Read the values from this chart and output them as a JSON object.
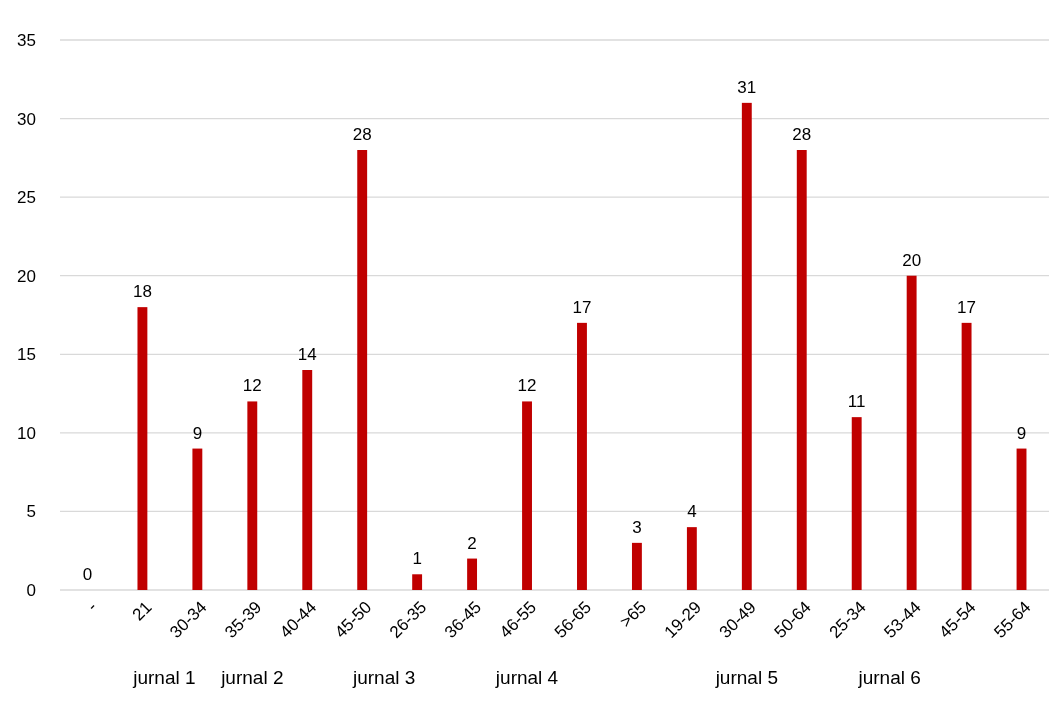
{
  "chart_data": {
    "type": "bar",
    "categories": [
      "-",
      "21",
      "30-34",
      "35-39",
      "40-44",
      "45-50",
      "26-35",
      "36-45",
      "46-55",
      "56-65",
      ">65",
      "19-29",
      "30-49",
      "50-64",
      "25-34",
      "53-44",
      "45-54",
      "55-64"
    ],
    "values": [
      0,
      18,
      9,
      12,
      14,
      28,
      1,
      2,
      12,
      17,
      3,
      4,
      31,
      28,
      11,
      20,
      17,
      9
    ],
    "color": "#c00000",
    "ylim": [
      0,
      35
    ],
    "yticks": [
      0,
      5,
      10,
      15,
      20,
      25,
      30,
      35
    ],
    "grid": "y",
    "data_labels": true,
    "annotations": [
      "jurnal 1",
      "jurnal 2",
      "jurnal 3",
      "jurnal 4",
      "jurnal 5",
      "jurnal 6"
    ]
  }
}
